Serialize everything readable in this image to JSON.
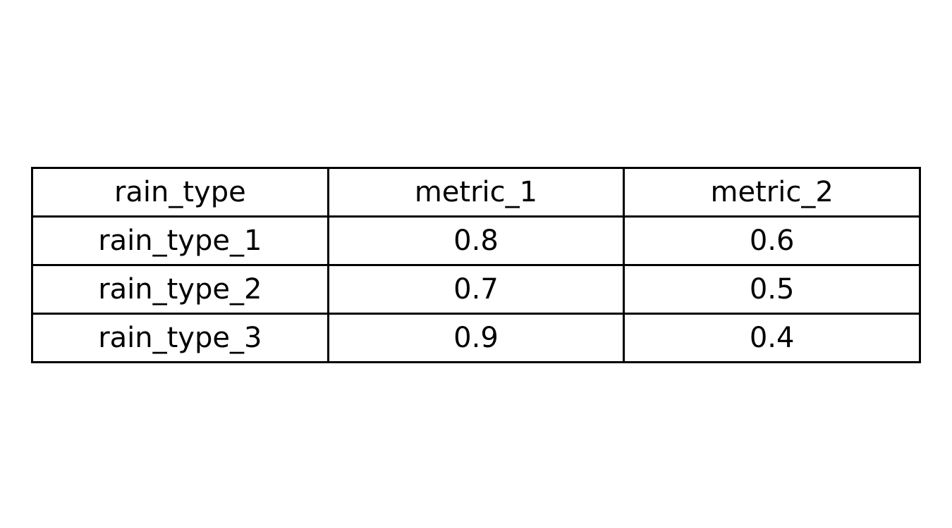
{
  "chart_data": {
    "type": "table",
    "columns": [
      "rain_type",
      "metric_1",
      "metric_2"
    ],
    "rows": [
      [
        "rain_type_1",
        "0.8",
        "0.6"
      ],
      [
        "rain_type_2",
        "0.7",
        "0.5"
      ],
      [
        "rain_type_3",
        "0.9",
        "0.4"
      ]
    ]
  }
}
